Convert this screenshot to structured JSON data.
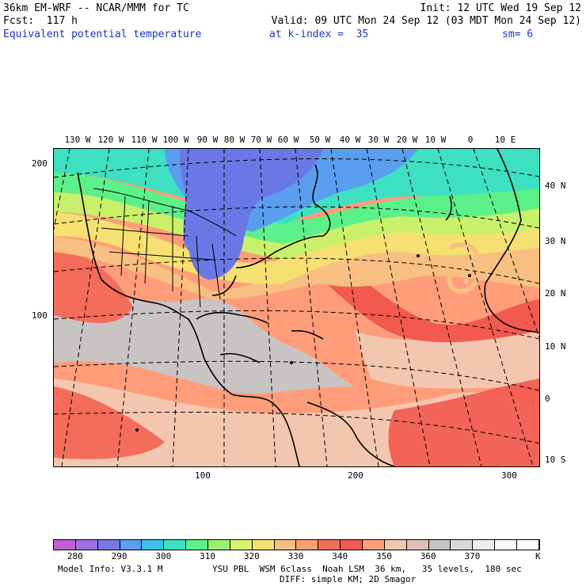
{
  "header": {
    "line1_left": "36km EM-WRF -- NCAR/MMM for TC",
    "line1_right": "Init: 12 UTC Wed 19 Sep 12",
    "line2_left": "Fcst:  117 h",
    "line2_right": "Valid: 09 UTC Mon 24 Sep 12 (03 MDT Mon 24 Sep 12)",
    "field_name": "Equivalent potential temperature",
    "level": "at k-index =  35",
    "smoothing": "sm= 6"
  },
  "map": {
    "lon_labels": [
      "130 W",
      "120 W",
      "110 W",
      "100 W",
      "90 W",
      "80 W",
      "70 W",
      "60 W",
      "50 W",
      "40 W",
      "30 W",
      "20 W",
      "10 W",
      "0",
      "10 E"
    ],
    "lat_labels": [
      "40 N",
      "30 N",
      "20 N",
      "10 N",
      "0",
      "10 S"
    ],
    "y_grid_labels": [
      "200",
      "100"
    ],
    "x_grid_labels": [
      "100",
      "200",
      "300"
    ],
    "region_colors": {
      "cold_core": "#6a78e6",
      "cool": "#5a9ef0",
      "teal": "#3de0c0",
      "green": "#5cf08a",
      "yellow_green": "#c9f06a",
      "yellow": "#f5e071",
      "orange_light": "#f7c082",
      "salmon": "#ff9d7a",
      "red": "#f2594f",
      "peach": "#f3c6b0",
      "gray": "#c8c4c4"
    }
  },
  "colorbar": {
    "colors": [
      "#c060d0",
      "#a070e0",
      "#7a78e6",
      "#5a9ef0",
      "#3dc0e8",
      "#3de0c0",
      "#5cf08a",
      "#9cf070",
      "#d8f070",
      "#f5e071",
      "#f7c082",
      "#f7a070",
      "#f46c5a",
      "#f2594f",
      "#ff9d7a",
      "#f3c6b0",
      "#dcc0b8",
      "#c8c4c4",
      "#d8d8d8",
      "#eeeeee",
      "#f8f8f8",
      "#ffffff"
    ],
    "labels": [
      "280",
      "290",
      "300",
      "310",
      "320",
      "330",
      "340",
      "350",
      "360",
      "370"
    ],
    "unit": "K"
  },
  "footer": {
    "model_info": "Model Info: V3.3.1 M",
    "physics": "YSU PBL  WSM 6class  Noah LSM  36 km,   35 levels,  180 sec",
    "diffusion": "DIFF: simple KM; 2D Smagor"
  }
}
